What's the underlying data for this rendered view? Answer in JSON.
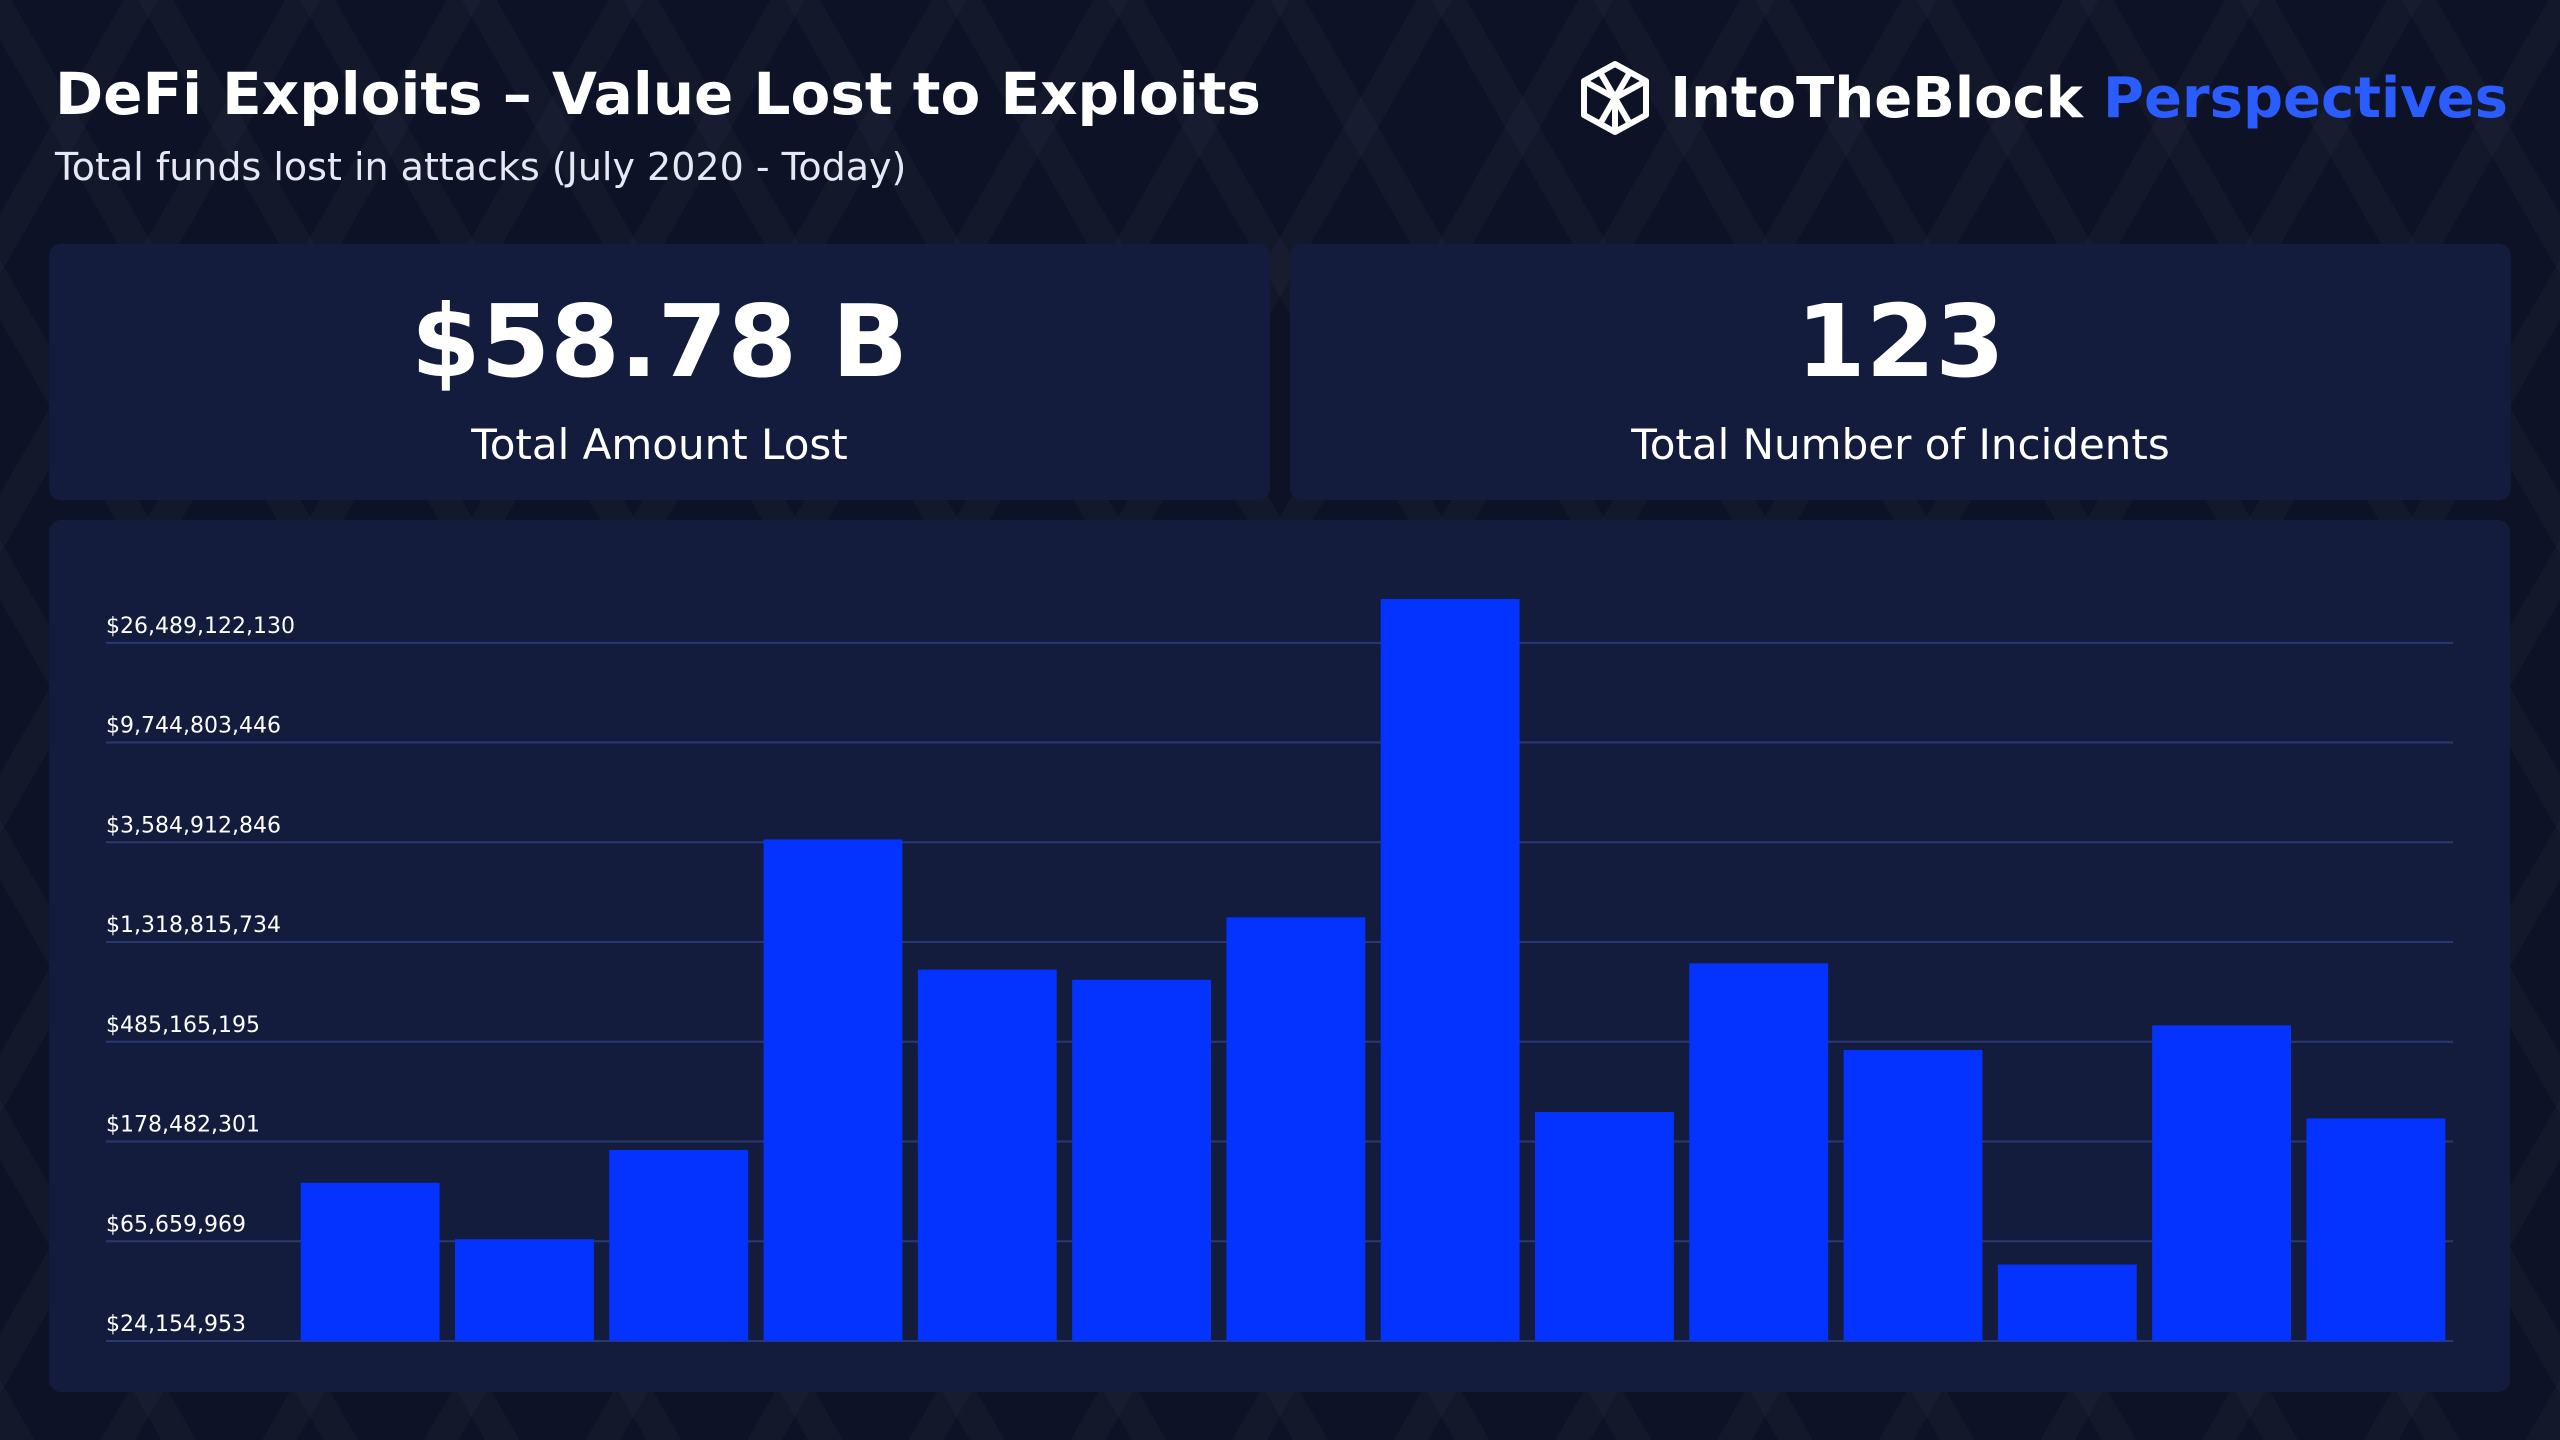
{
  "header": {
    "title": "DeFi Exploits – Value Lost to Exploits",
    "subtitle": "Total funds lost in attacks (July 2020 - Today)",
    "brand": "IntoTheBlock",
    "brand_suffix": "Perspectives"
  },
  "stats": [
    {
      "value": "$58.78 B",
      "label": "Total Amount Lost"
    },
    {
      "value": 123,
      "label": "Total Number of Incidents"
    }
  ],
  "chart_data": {
    "type": "bar",
    "log_scale": true,
    "grid": true,
    "color": "#0433ff",
    "categories": [
      null,
      null,
      null,
      null,
      null,
      null,
      null,
      null,
      null,
      null,
      null,
      null,
      null,
      null
    ],
    "values": [
      118000000,
      67000000,
      164000000,
      3690000000,
      1000000000,
      903000000,
      1690000000,
      41100000000,
      240000000,
      1065000000,
      447000000,
      52000000,
      572000000,
      225000000
    ],
    "ylim": [
      24154953,
      41100000000
    ],
    "yticks": [
      {
        "value": 24154953,
        "label": "$24,154,953"
      },
      {
        "value": 65659969,
        "label": "$65,659,969"
      },
      {
        "value": 178482301,
        "label": "$178,482,301"
      },
      {
        "value": 485165195,
        "label": "$485,165,195"
      },
      {
        "value": 1318815734,
        "label": "$1,318,815,734"
      },
      {
        "value": 3584912846,
        "label": "$3,584,912,846"
      },
      {
        "value": 9744803446,
        "label": "$9,744,803,446"
      },
      {
        "value": 26489122130,
        "label": "$26,489,122,130"
      }
    ]
  }
}
